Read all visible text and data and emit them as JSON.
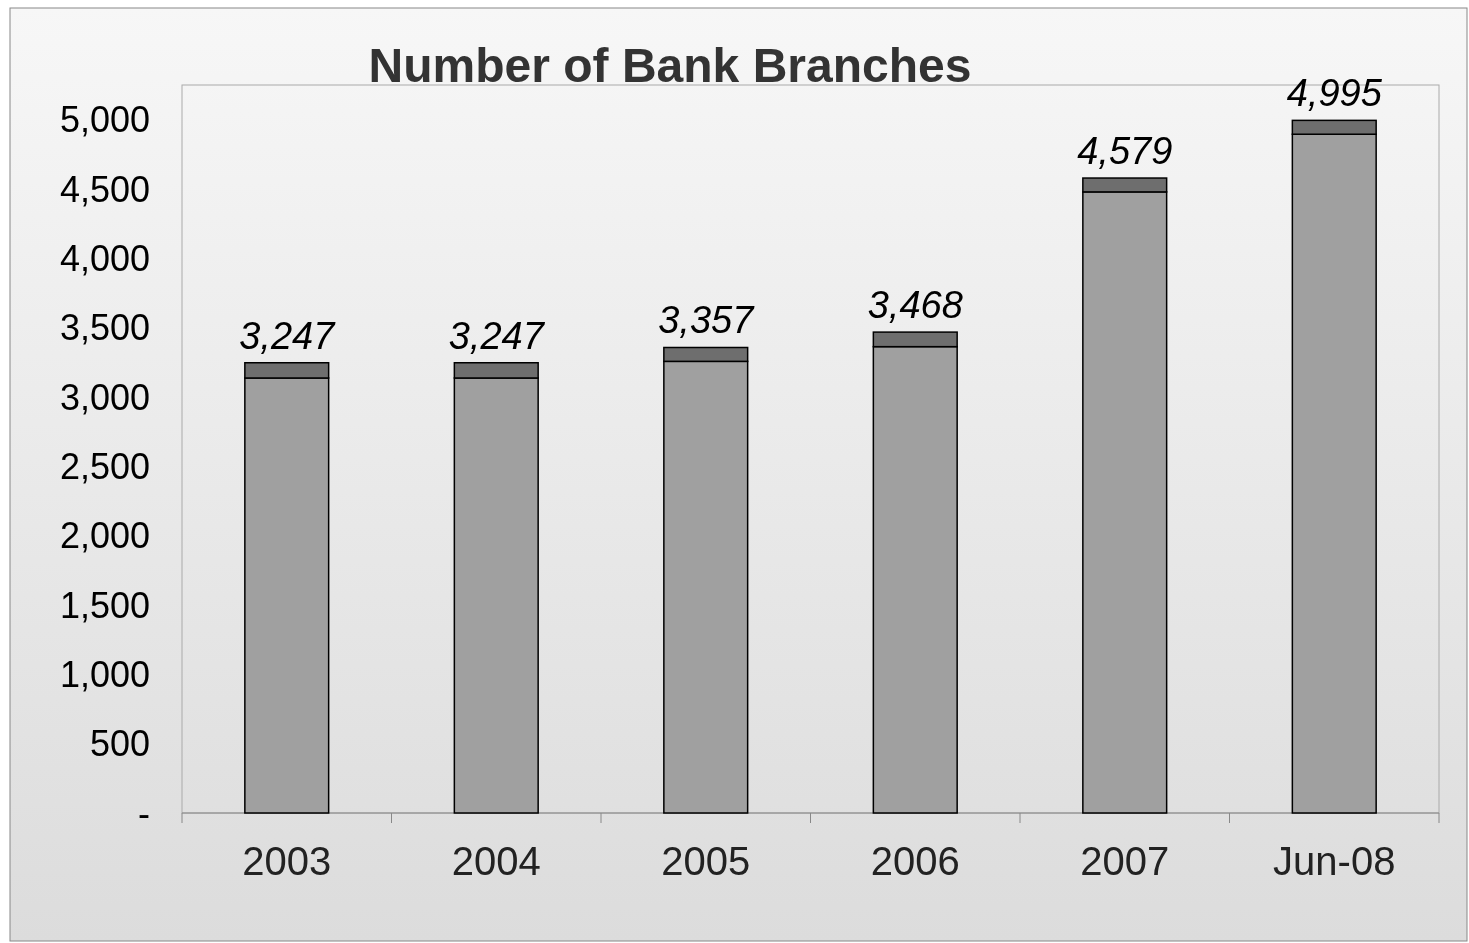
{
  "chart_data": {
    "type": "bar",
    "title": "Number of Bank Branches",
    "categories": [
      "2003",
      "2004",
      "2005",
      "2006",
      "2007",
      "Jun-08"
    ],
    "stacked": true,
    "series": [
      {
        "color": "#a0a0a0",
        "values": [
          3137,
          3137,
          3257,
          3363,
          4479,
          4895
        ]
      },
      {
        "color": "#6e6e6e",
        "values": [
          110,
          110,
          100,
          105,
          100,
          100
        ]
      }
    ],
    "totals": [
      "3,247",
      "3,247",
      "3,357",
      "3,468",
      "4,579",
      "4,995"
    ],
    "ylim": [
      0,
      5250
    ],
    "yticks": [
      {
        "value": 0,
        "label": "-"
      },
      {
        "value": 500,
        "label": "500"
      },
      {
        "value": 1000,
        "label": "1,000"
      },
      {
        "value": 1500,
        "label": "1,500"
      },
      {
        "value": 2000,
        "label": "2,000"
      },
      {
        "value": 2500,
        "label": "2,500"
      },
      {
        "value": 3000,
        "label": "3,000"
      },
      {
        "value": 3500,
        "label": "3,500"
      },
      {
        "value": 4000,
        "label": "4,000"
      },
      {
        "value": 4500,
        "label": "4,500"
      },
      {
        "value": 5000,
        "label": "5,000"
      }
    ],
    "grid": false
  }
}
